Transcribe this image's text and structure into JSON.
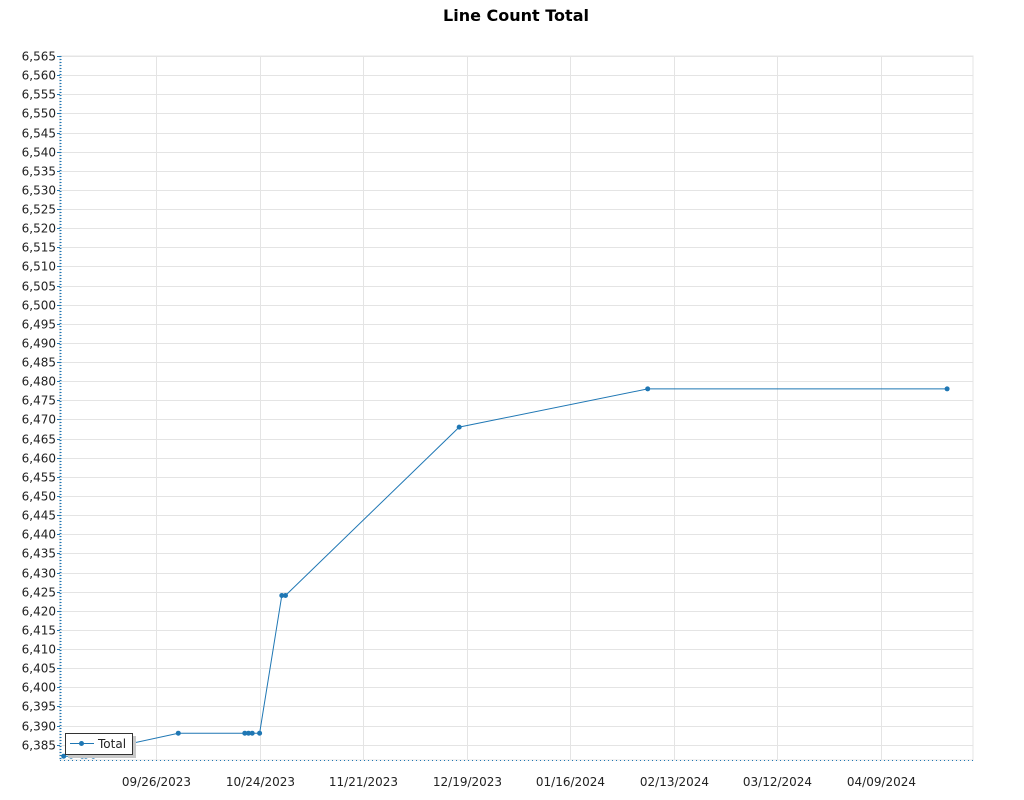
{
  "chart_data": {
    "type": "line",
    "title": "Line Count Total",
    "xlabel": "",
    "ylabel": "",
    "grid": true,
    "legend_position": "bottom-left",
    "line_color": "#1f77b4",
    "xlim": [
      "2023-08-31",
      "2024-05-04"
    ],
    "ylim": [
      6381,
      6565
    ],
    "y_ticks": [
      6385,
      6390,
      6395,
      6400,
      6405,
      6410,
      6415,
      6420,
      6425,
      6430,
      6435,
      6440,
      6445,
      6450,
      6455,
      6460,
      6465,
      6470,
      6475,
      6480,
      6485,
      6490,
      6495,
      6500,
      6505,
      6510,
      6515,
      6520,
      6525,
      6530,
      6535,
      6540,
      6545,
      6550,
      6555,
      6560,
      6565
    ],
    "x_ticks": [
      "09/26/2023",
      "10/24/2023",
      "11/21/2023",
      "12/19/2023",
      "01/16/2024",
      "02/13/2024",
      "03/12/2024",
      "04/09/2024"
    ],
    "series": [
      {
        "name": "Total",
        "points": [
          {
            "x": "2023-09-01",
            "y": 6382
          },
          {
            "x": "2023-09-03",
            "y": 6382
          },
          {
            "x": "2023-09-06",
            "y": 6382
          },
          {
            "x": "2023-09-07",
            "y": 6382
          },
          {
            "x": "2023-09-09",
            "y": 6382
          },
          {
            "x": "2023-09-13",
            "y": 6384
          },
          {
            "x": "2023-10-02",
            "y": 6388
          },
          {
            "x": "2023-10-20",
            "y": 6388
          },
          {
            "x": "2023-10-21",
            "y": 6388
          },
          {
            "x": "2023-10-22",
            "y": 6388
          },
          {
            "x": "2023-10-24",
            "y": 6388
          },
          {
            "x": "2023-10-30",
            "y": 6424
          },
          {
            "x": "2023-10-31",
            "y": 6424
          },
          {
            "x": "2023-12-17",
            "y": 6468
          },
          {
            "x": "2024-02-06",
            "y": 6478
          },
          {
            "x": "2024-04-27",
            "y": 6478
          }
        ]
      }
    ]
  }
}
